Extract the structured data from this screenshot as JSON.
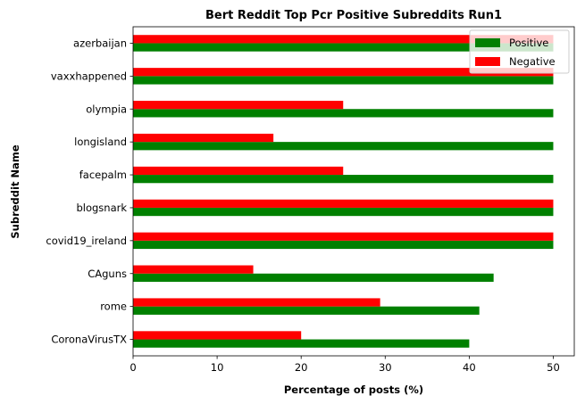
{
  "chart_data": {
    "type": "bar",
    "orientation": "horizontal",
    "title": "Bert Reddit Top Pcr Positive Subreddits Run1",
    "xlabel": "Percentage of posts (%)",
    "ylabel": "Subreddit Name",
    "categories": [
      "CoronaVirusTX",
      "rome",
      "CAguns",
      "covid19_ireland",
      "blogsnark",
      "facepalm",
      "longisland",
      "olympia",
      "vaxxhappened",
      "azerbaijan"
    ],
    "series": [
      {
        "name": "Positive",
        "color": "#008000",
        "values": [
          40.0,
          41.2,
          42.9,
          50.0,
          50.0,
          50.0,
          50.0,
          50.0,
          50.0,
          50.0
        ]
      },
      {
        "name": "Negative",
        "color": "#ff0000",
        "values": [
          20.0,
          29.4,
          14.3,
          50.0,
          50.0,
          25.0,
          16.7,
          25.0,
          50.0,
          50.0
        ]
      }
    ],
    "xlim": [
      0,
      52.5
    ],
    "xticks": [
      "0",
      "10",
      "20",
      "30",
      "40",
      "50"
    ],
    "grid": false,
    "legend_position": "top-right"
  }
}
